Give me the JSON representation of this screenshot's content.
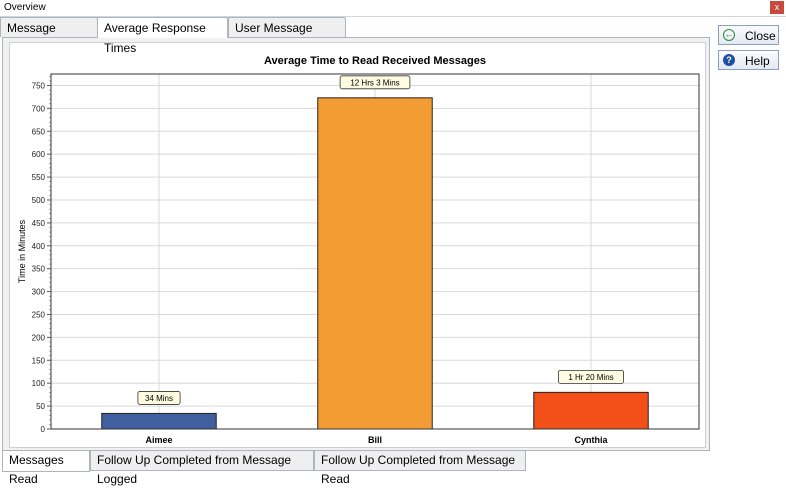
{
  "window": {
    "title": "Overview",
    "close_glyph": "x"
  },
  "tabs_top": [
    {
      "label": "Message Statistics",
      "active": false
    },
    {
      "label": "Average Response Times",
      "active": true
    },
    {
      "label": "User Message Status",
      "active": false
    }
  ],
  "tabs_bottom": [
    {
      "label": "Messages Read",
      "active": true
    },
    {
      "label": "Follow Up Completed from Message Logged",
      "active": false
    },
    {
      "label": "Follow Up Completed from Message Read",
      "active": false
    }
  ],
  "buttons": {
    "close_label": "Close",
    "help_label": "Help",
    "close_icon": "back-arrow-icon",
    "help_icon": "question-icon"
  },
  "chart_data": {
    "type": "bar",
    "title": "Average Time to Read Received Messages",
    "xlabel": "",
    "ylabel": "Time in Minutes",
    "ylim": [
      0,
      775
    ],
    "yticks": [
      0,
      50,
      100,
      150,
      200,
      250,
      300,
      350,
      400,
      450,
      500,
      550,
      600,
      650,
      700,
      750
    ],
    "categories": [
      "Aimee",
      "Bill",
      "Cynthia"
    ],
    "values": [
      34,
      723,
      80
    ],
    "data_labels": [
      "34 Mins",
      "12 Hrs 3 Mins",
      "1 Hr 20 Mins"
    ],
    "colors": [
      "#3f5f9e",
      "#f39c34",
      "#f24f19"
    ],
    "grid": true,
    "legend": "none"
  }
}
